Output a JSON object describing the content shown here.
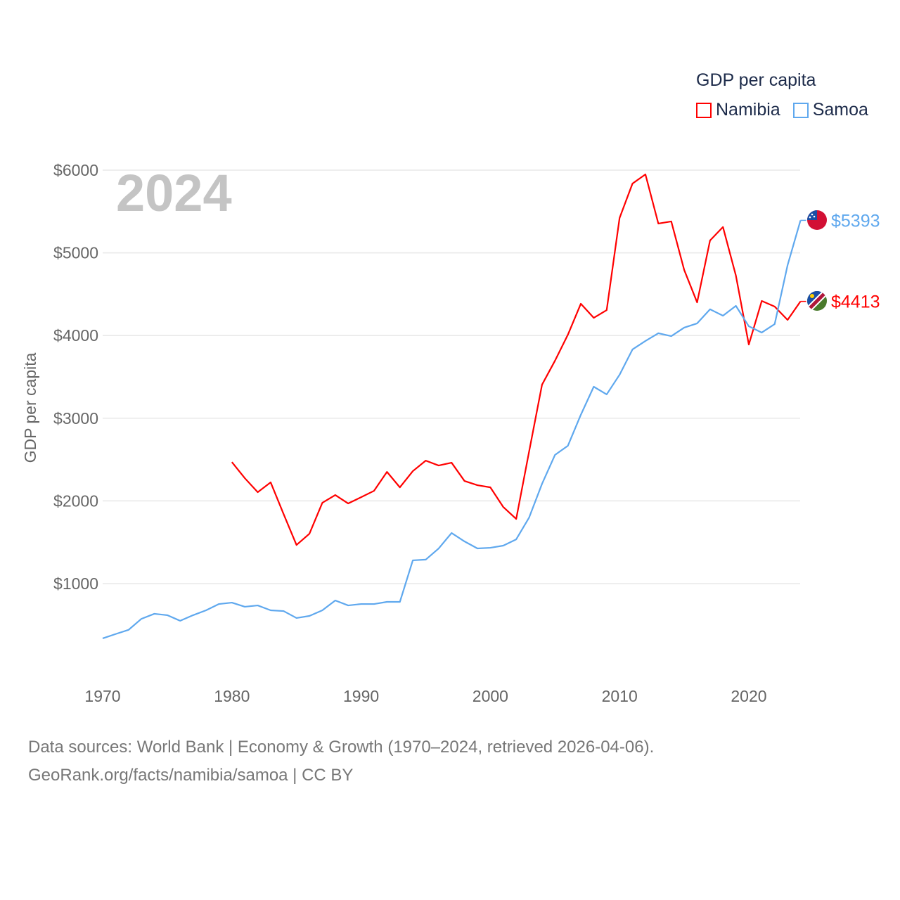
{
  "chart_data": {
    "type": "line",
    "title": "GDP per capita",
    "year_label": "2024",
    "ylabel": "GDP per capita",
    "xlabel": "",
    "xlim": [
      1970,
      2024
    ],
    "ylim": [
      0,
      6000
    ],
    "x_ticks": [
      "1970",
      "1980",
      "1990",
      "2000",
      "2010",
      "2020"
    ],
    "y_ticks": [
      "$1000",
      "$2000",
      "$3000",
      "$4000",
      "$5000",
      "$6000"
    ],
    "y_tick_values": [
      1000,
      2000,
      3000,
      4000,
      5000,
      6000
    ],
    "grid": true,
    "legend_position": "top-right",
    "series": [
      {
        "name": "Namibia",
        "color": "#ff0000",
        "end_label": "$4413",
        "start_year": 1980,
        "values": [
          2470,
          2275,
          2105,
          2224,
          1841,
          1467,
          1603,
          1977,
          2071,
          1969,
          2045,
          2122,
          2351,
          2164,
          2360,
          2487,
          2428,
          2462,
          2241,
          2190,
          2164,
          1926,
          1782,
          2598,
          3406,
          3695,
          4010,
          4384,
          4214,
          4307,
          5422,
          5838,
          5949,
          5354,
          5380,
          4793,
          4401,
          5150,
          5312,
          4725,
          3891,
          4418,
          4350,
          4189,
          4413
        ]
      },
      {
        "name": "Samoa",
        "color": "#5fa8ee",
        "end_label": "$5393",
        "start_year": 1970,
        "values": [
          337,
          390,
          440,
          574,
          635,
          618,
          550,
          618,
          677,
          753,
          770,
          720,
          736,
          677,
          668,
          584,
          609,
          677,
          796,
          736,
          753,
          753,
          779,
          779,
          1281,
          1290,
          1425,
          1612,
          1510,
          1425,
          1433,
          1459,
          1535,
          1799,
          2207,
          2556,
          2667,
          3041,
          3381,
          3288,
          3526,
          3832,
          3934,
          4028,
          3993,
          4096,
          4147,
          4317,
          4240,
          4359,
          4112,
          4036,
          4138,
          4851,
          5393
        ]
      }
    ]
  },
  "footer": {
    "line1": "Data sources: World Bank | Economy & Growth (1970–2024, retrieved 2026-04-06).",
    "line2": "GeoRank.org/facts/namibia/samoa | CC BY"
  }
}
